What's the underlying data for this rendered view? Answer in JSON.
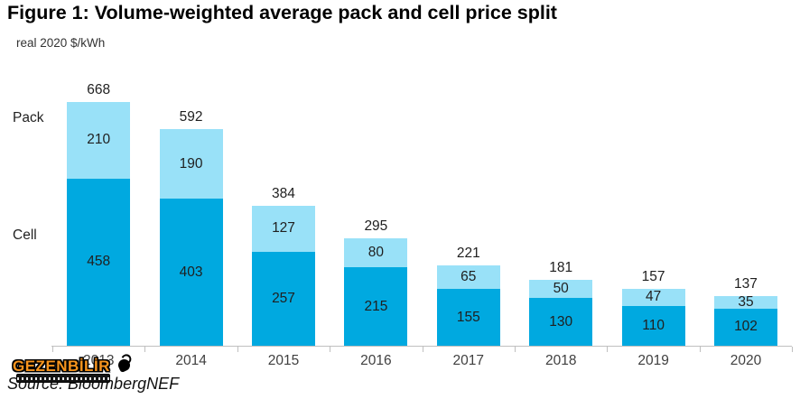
{
  "title": "Figure 1: Volume-weighted average pack and cell price split",
  "subtitle": "real 2020 $/kWh",
  "labels": {
    "pack": "Pack",
    "cell": "Cell"
  },
  "source": "Source: BloombergNEF",
  "watermark": {
    "text": "GEZENBİLİR"
  },
  "colors": {
    "cell_segment": "#00A9E0",
    "pack_segment": "#99E1F8",
    "axis": "#BFBFBF",
    "value_text": "#1f1f1f",
    "year_text": "#404040",
    "watermark_orange": "#F7941D"
  },
  "chart_data": {
    "type": "bar",
    "stacked": true,
    "title": "Figure 1: Volume-weighted average pack and cell price split",
    "ylabel": "real 2020 $/kWh",
    "xlabel": "",
    "categories": [
      "2013",
      "2014",
      "2015",
      "2016",
      "2017",
      "2018",
      "2019",
      "2020"
    ],
    "series": [
      {
        "name": "Cell",
        "color": "#00A9E0",
        "values": [
          458,
          403,
          257,
          215,
          155,
          130,
          110,
          102
        ]
      },
      {
        "name": "Pack",
        "color": "#99E1F8",
        "values": [
          210,
          190,
          127,
          80,
          65,
          50,
          47,
          35
        ]
      }
    ],
    "totals": [
      668,
      592,
      384,
      295,
      221,
      181,
      157,
      137
    ],
    "ylim": [
      0,
      710
    ],
    "grid": false,
    "legend_position": "left-category-labels",
    "value_labels": true
  }
}
